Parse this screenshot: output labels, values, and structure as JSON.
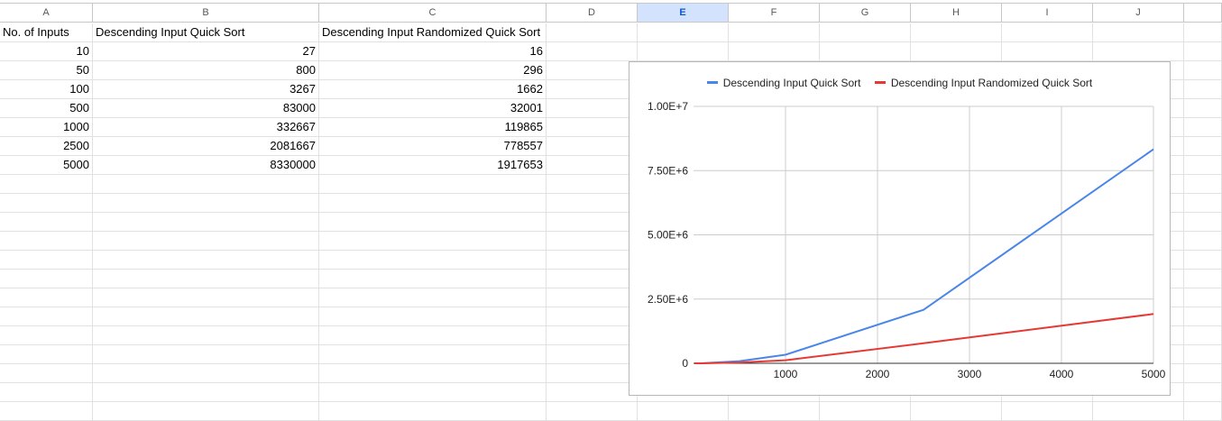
{
  "columns": [
    "A",
    "B",
    "C",
    "D",
    "E",
    "F",
    "G",
    "H",
    "I",
    "J"
  ],
  "selected_column": "E",
  "headers": {
    "a": "No. of Inputs",
    "b": "Descending Input Quick Sort",
    "c": "Descending Input Randomized Quick Sort"
  },
  "rows": [
    {
      "a": "10",
      "b": "27",
      "c": "16"
    },
    {
      "a": "50",
      "b": "800",
      "c": "296"
    },
    {
      "a": "100",
      "b": "3267",
      "c": "1662"
    },
    {
      "a": "500",
      "b": "83000",
      "c": "32001"
    },
    {
      "a": "1000",
      "b": "332667",
      "c": "119865"
    },
    {
      "a": "2500",
      "b": "2081667",
      "c": "778557"
    },
    {
      "a": "5000",
      "b": "8330000",
      "c": "1917653"
    }
  ],
  "colors": {
    "series1": "#4a86e8",
    "series2": "#e53935",
    "grid": "#cccccc",
    "selected_header_bg": "#d3e3fd"
  },
  "chart_data": {
    "type": "line",
    "title": "",
    "xlabel": "",
    "ylabel": "",
    "x": [
      10,
      50,
      100,
      500,
      1000,
      2500,
      5000
    ],
    "series": [
      {
        "name": "Descending Input Quick Sort",
        "values": [
          27,
          800,
          3267,
          83000,
          332667,
          2081667,
          8330000
        ]
      },
      {
        "name": "Descending Input Randomized Quick Sort",
        "values": [
          16,
          296,
          1662,
          32001,
          119865,
          778557,
          1917653
        ]
      }
    ],
    "xlim": [
      0,
      5000
    ],
    "ylim": [
      0,
      10000000
    ],
    "x_ticks": [
      1000,
      2000,
      3000,
      4000,
      5000
    ],
    "x_tick_labels": [
      "1000",
      "2000",
      "3000",
      "4000",
      "5000"
    ],
    "y_ticks": [
      0,
      2500000,
      5000000,
      7500000,
      10000000
    ],
    "y_tick_labels": [
      "0",
      "2.50E+6",
      "5.00E+6",
      "7.50E+6",
      "1.00E+7"
    ],
    "legend_position": "top",
    "grid": true
  }
}
